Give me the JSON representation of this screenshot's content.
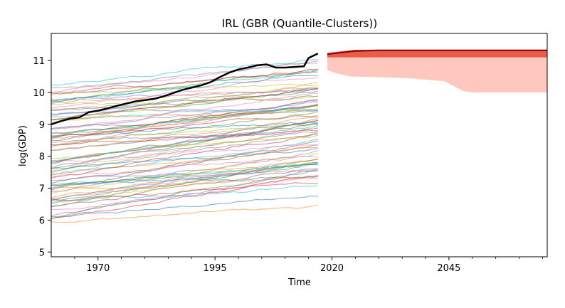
{
  "chart_data": {
    "type": "line",
    "title": "IRL (GBR (Quantile-Clusters))",
    "xlabel": "Time",
    "ylabel": "log(GDP)",
    "xlim": [
      1960,
      2066
    ],
    "ylim": [
      4.85,
      11.85
    ],
    "x_ticks": [
      1970,
      1995,
      2020,
      2045
    ],
    "y_ticks": [
      5,
      6,
      7,
      8,
      9,
      10,
      11
    ],
    "grid": false,
    "legend": "none",
    "history_start": 1960,
    "history_end": 2017,
    "background_series_count": 80,
    "background_range": {
      "low_start": 5.8,
      "high_start": 10.3,
      "low_end": 6.4,
      "high_end": 11.3
    },
    "highlight_series": {
      "color": "#000000",
      "points": [
        [
          1960,
          9.0
        ],
        [
          1962,
          9.1
        ],
        [
          1964,
          9.18
        ],
        [
          1966,
          9.22
        ],
        [
          1968,
          9.38
        ],
        [
          1970,
          9.43
        ],
        [
          1972,
          9.5
        ],
        [
          1974,
          9.58
        ],
        [
          1976,
          9.65
        ],
        [
          1978,
          9.72
        ],
        [
          1980,
          9.76
        ],
        [
          1982,
          9.8
        ],
        [
          1984,
          9.88
        ],
        [
          1986,
          9.98
        ],
        [
          1988,
          10.08
        ],
        [
          1990,
          10.15
        ],
        [
          1992,
          10.22
        ],
        [
          1994,
          10.32
        ],
        [
          1996,
          10.48
        ],
        [
          1998,
          10.62
        ],
        [
          2000,
          10.72
        ],
        [
          2002,
          10.78
        ],
        [
          2004,
          10.85
        ],
        [
          2006,
          10.88
        ],
        [
          2008,
          10.78
        ],
        [
          2010,
          10.78
        ],
        [
          2012,
          10.8
        ],
        [
          2014,
          10.82
        ],
        [
          2015,
          11.08
        ],
        [
          2017,
          11.22
        ]
      ]
    },
    "forecast": {
      "color": "#8b0000",
      "band_color": "#ff9a8a",
      "central": [
        [
          2019,
          11.2
        ],
        [
          2022,
          11.25
        ],
        [
          2025,
          11.3
        ],
        [
          2030,
          11.32
        ],
        [
          2040,
          11.32
        ],
        [
          2050,
          11.32
        ],
        [
          2066,
          11.32
        ]
      ],
      "inner_band_upper": [
        [
          2019,
          11.24
        ],
        [
          2025,
          11.34
        ],
        [
          2066,
          11.34
        ]
      ],
      "inner_band_lower": [
        [
          2019,
          11.1
        ],
        [
          2025,
          11.1
        ],
        [
          2066,
          11.1
        ]
      ],
      "outer_band_upper": [
        [
          2019,
          11.22
        ],
        [
          2025,
          11.32
        ],
        [
          2066,
          11.32
        ]
      ],
      "outer_band_lower": [
        [
          2019,
          10.7
        ],
        [
          2021,
          10.6
        ],
        [
          2024,
          10.5
        ],
        [
          2030,
          10.48
        ],
        [
          2036,
          10.45
        ],
        [
          2040,
          10.4
        ],
        [
          2044,
          10.35
        ],
        [
          2046,
          10.2
        ],
        [
          2048,
          10.05
        ],
        [
          2050,
          10.0
        ],
        [
          2066,
          10.0
        ]
      ]
    },
    "palette": [
      "#1f77b4",
      "#ff7f0e",
      "#2ca02c",
      "#d62728",
      "#9467bd",
      "#8c564b",
      "#e377c2",
      "#7f7f7f",
      "#bcbd22",
      "#17becf"
    ]
  }
}
